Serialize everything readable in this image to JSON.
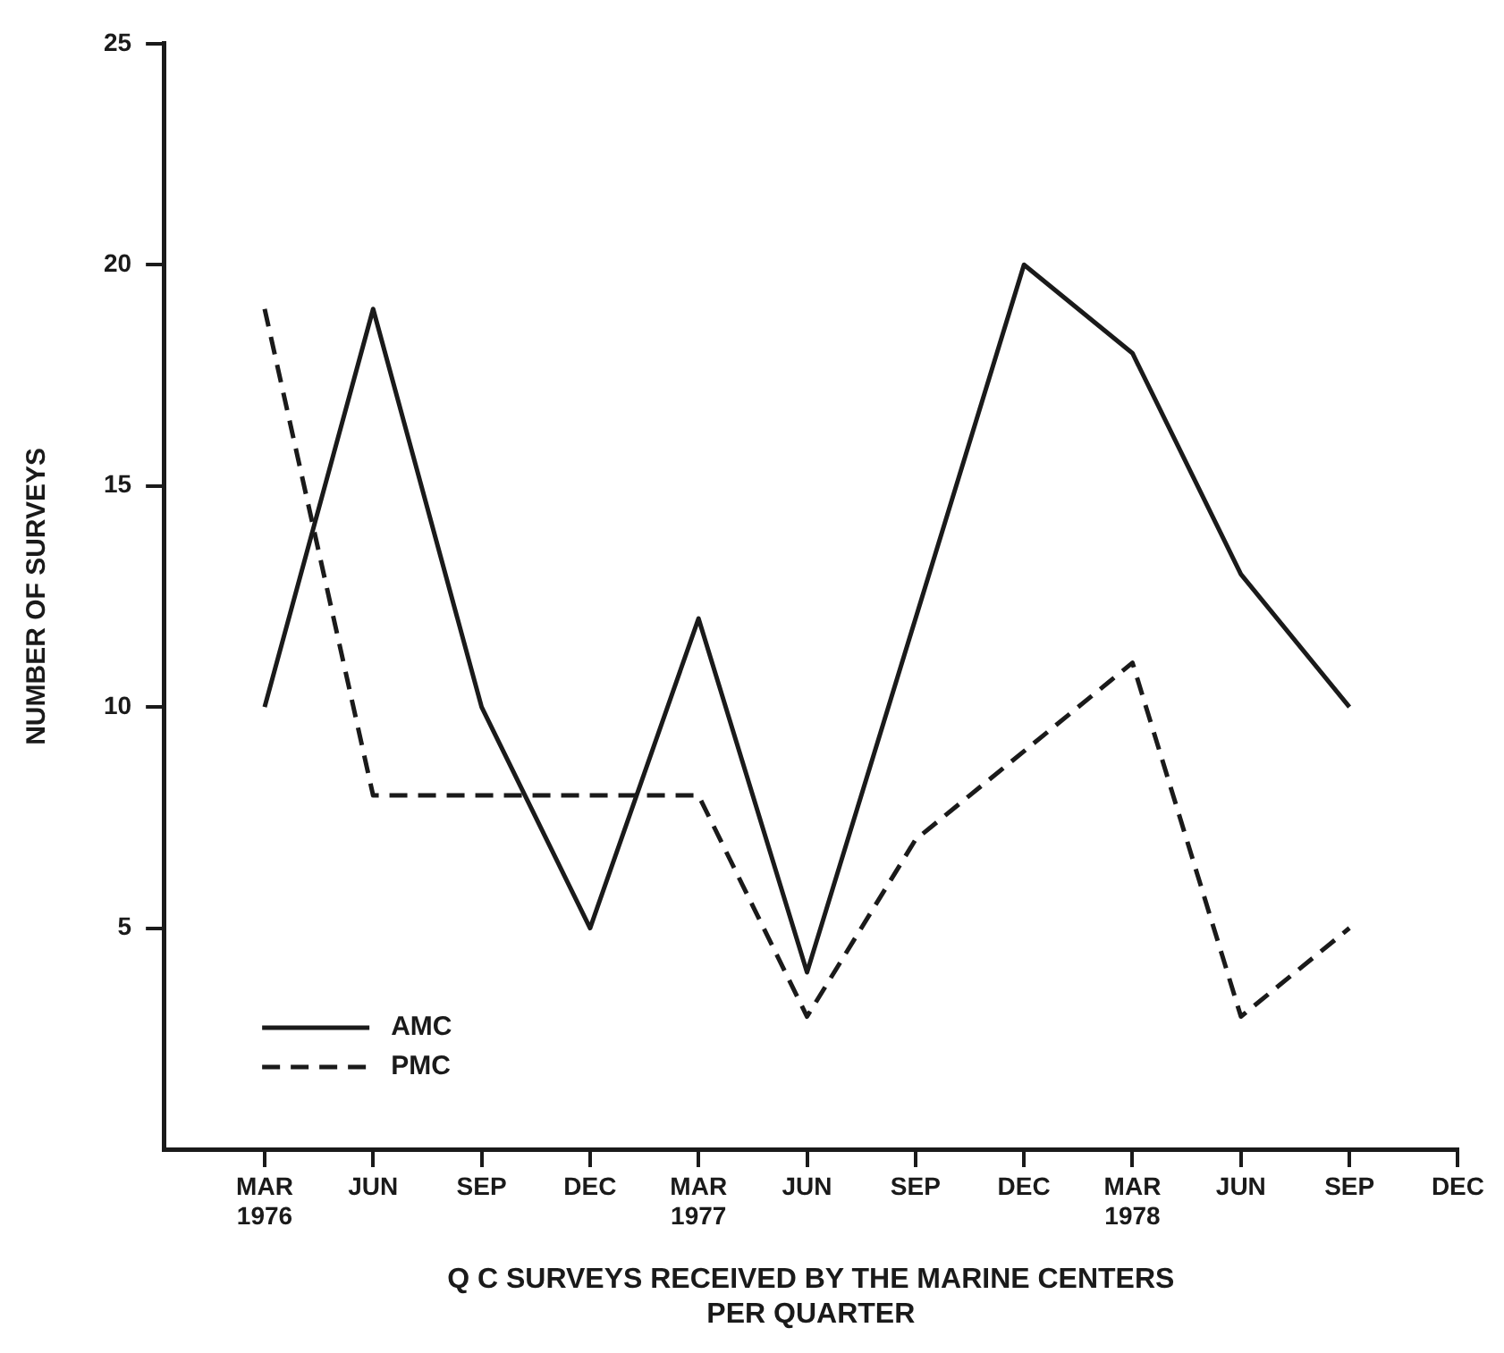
{
  "chart_data": {
    "type": "line",
    "ylabel": "NUMBER OF SURVEYS",
    "xlabel": "Q C SURVEYS RECEIVED BY THE MARINE CENTERS\nPER QUARTER",
    "categories": [
      "MAR\n1976",
      "JUN",
      "SEP",
      "DEC",
      "MAR\n1977",
      "JUN",
      "SEP",
      "DEC",
      "MAR\n1978",
      "JUN",
      "SEP",
      "DEC"
    ],
    "series": [
      {
        "name": "AMC",
        "color": "#1a1a1a",
        "line_style": "solid",
        "values": [
          10,
          19,
          10,
          5,
          12,
          4,
          12,
          20,
          18,
          13,
          10,
          null
        ]
      },
      {
        "name": "PMC",
        "color": "#1a1a1a",
        "line_style": "dashed",
        "values": [
          19,
          8,
          8,
          8,
          8,
          3,
          7,
          9,
          11,
          3,
          5,
          null
        ]
      }
    ],
    "ylim": [
      0,
      25
    ],
    "yticks": [
      5,
      10,
      15,
      20,
      25
    ],
    "grid": false,
    "legend": "bottom left",
    "marker": "none"
  }
}
